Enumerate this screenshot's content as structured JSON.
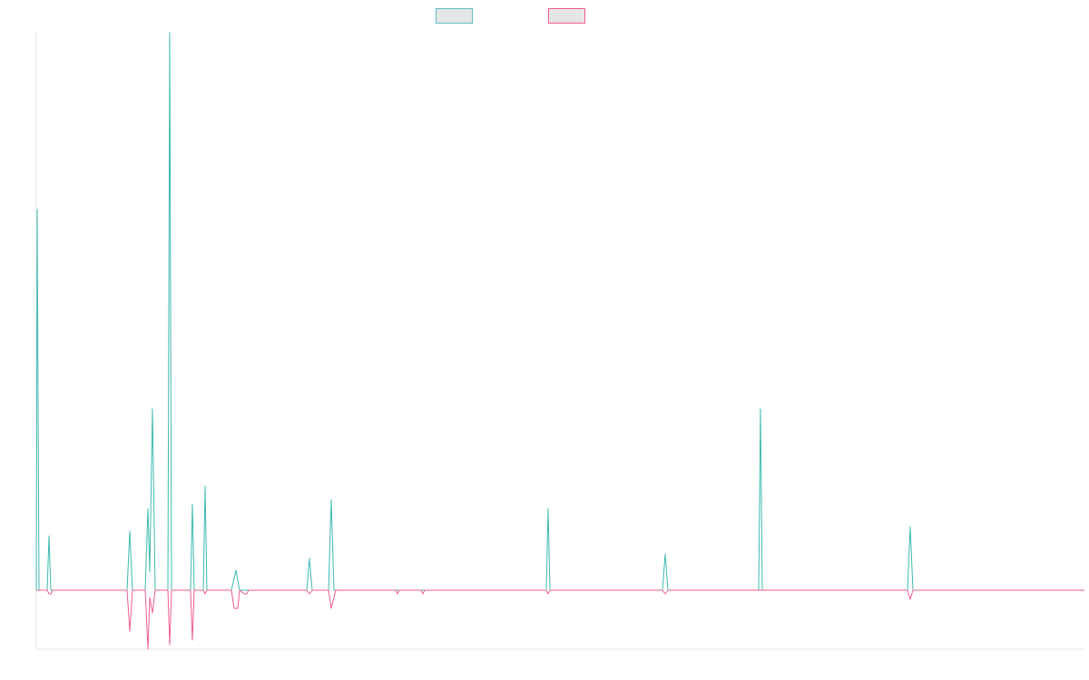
{
  "chart_data": {
    "type": "line",
    "title": "",
    "xlabel": "",
    "ylabel": "",
    "x_range": [
      0,
      1155
    ],
    "ylim": [
      -65,
      615
    ],
    "grid": false,
    "legend_position": "top",
    "baseline": 0,
    "series": [
      {
        "key": "teal",
        "color": "#3dbbb0",
        "legend_fill": "#e6e6e6",
        "legend_stroke": "#5bbfc9",
        "points": [
          [
            0,
            0
          ],
          [
            1,
            420
          ],
          [
            3,
            0
          ],
          [
            12,
            0
          ],
          [
            14,
            60
          ],
          [
            16,
            0
          ],
          [
            100,
            0
          ],
          [
            103,
            65
          ],
          [
            106,
            0
          ],
          [
            120,
            0
          ],
          [
            123,
            90
          ],
          [
            125,
            20
          ],
          [
            128,
            200
          ],
          [
            131,
            0
          ],
          [
            145,
            0
          ],
          [
            147,
            615
          ],
          [
            149,
            0
          ],
          [
            170,
            0
          ],
          [
            172,
            95
          ],
          [
            174,
            0
          ],
          [
            184,
            0
          ],
          [
            186,
            115
          ],
          [
            188,
            0
          ],
          [
            215,
            0
          ],
          [
            220,
            22
          ],
          [
            224,
            0
          ],
          [
            298,
            0
          ],
          [
            301,
            35
          ],
          [
            304,
            0
          ],
          [
            322,
            0
          ],
          [
            325,
            100
          ],
          [
            328,
            0
          ],
          [
            562,
            0
          ],
          [
            564,
            90
          ],
          [
            566,
            0
          ],
          [
            690,
            0
          ],
          [
            693,
            40
          ],
          [
            696,
            0
          ],
          [
            796,
            0
          ],
          [
            798,
            200
          ],
          [
            800,
            0
          ],
          [
            960,
            0
          ],
          [
            963,
            70
          ],
          [
            966,
            0
          ],
          [
            1155,
            0
          ]
        ]
      },
      {
        "key": "pink",
        "color": "#ef5f8a",
        "legend_fill": "#e6e6e6",
        "legend_stroke": "#ef5f8a",
        "points": [
          [
            0,
            0
          ],
          [
            12,
            0
          ],
          [
            14,
            -4
          ],
          [
            16,
            -4
          ],
          [
            18,
            0
          ],
          [
            100,
            0
          ],
          [
            103,
            -45
          ],
          [
            106,
            0
          ],
          [
            120,
            0
          ],
          [
            123,
            -65
          ],
          [
            125,
            -8
          ],
          [
            128,
            -25
          ],
          [
            131,
            0
          ],
          [
            145,
            0
          ],
          [
            147,
            -60
          ],
          [
            149,
            0
          ],
          [
            170,
            0
          ],
          [
            172,
            -55
          ],
          [
            174,
            0
          ],
          [
            184,
            0
          ],
          [
            186,
            -4
          ],
          [
            188,
            0
          ],
          [
            215,
            0
          ],
          [
            218,
            -20
          ],
          [
            222,
            -20
          ],
          [
            224,
            0
          ],
          [
            229,
            -4
          ],
          [
            232,
            -4
          ],
          [
            234,
            0
          ],
          [
            298,
            0
          ],
          [
            301,
            -4
          ],
          [
            304,
            0
          ],
          [
            322,
            0
          ],
          [
            325,
            -20
          ],
          [
            330,
            0
          ],
          [
            396,
            0
          ],
          [
            398,
            -4
          ],
          [
            400,
            0
          ],
          [
            424,
            0
          ],
          [
            426,
            -4
          ],
          [
            428,
            0
          ],
          [
            562,
            0
          ],
          [
            564,
            -4
          ],
          [
            566,
            0
          ],
          [
            690,
            0
          ],
          [
            693,
            -4
          ],
          [
            696,
            0
          ],
          [
            960,
            0
          ],
          [
            963,
            -10
          ],
          [
            966,
            0
          ],
          [
            1155,
            0
          ]
        ]
      }
    ]
  }
}
